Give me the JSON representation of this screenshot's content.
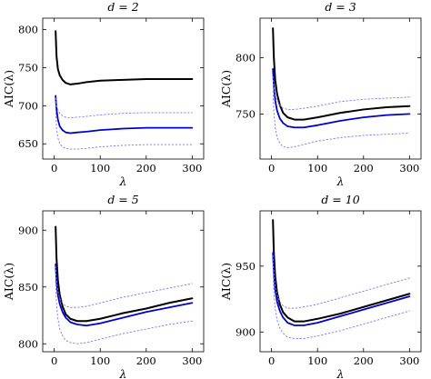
{
  "chart_data": [
    {
      "type": "line",
      "title": "d = 2",
      "xlabel": "λ",
      "ylabel": "AIC(λ)",
      "xlim": [
        -25,
        325
      ],
      "ylim": [
        630,
        815
      ],
      "xticks": [
        0,
        100,
        200,
        300
      ],
      "yticks": [
        650,
        700,
        750,
        800
      ],
      "grid": false,
      "colors": {
        "aic": "#000000",
        "model": "#0000cc",
        "band": "#7777ee"
      },
      "series": [
        {
          "role": "aic",
          "x": [
            3,
            5,
            8,
            12,
            18,
            25,
            35,
            50,
            70,
            100,
            150,
            200,
            250,
            300
          ],
          "y": [
            798,
            765,
            748,
            740,
            734,
            730,
            728,
            729,
            731,
            733,
            734,
            735,
            735,
            735
          ]
        },
        {
          "role": "model",
          "x": [
            3,
            5,
            8,
            12,
            18,
            25,
            35,
            50,
            70,
            100,
            150,
            200,
            250,
            300
          ],
          "y": [
            713,
            695,
            682,
            673,
            668,
            665,
            664,
            665,
            666,
            668,
            670,
            671,
            671,
            671
          ]
        },
        {
          "role": "band",
          "x": [
            3,
            5,
            8,
            12,
            18,
            25,
            35,
            50,
            70,
            100,
            150,
            200,
            250,
            300
          ],
          "y": [
            710,
            700,
            695,
            690,
            687,
            685,
            684,
            685,
            686,
            688,
            690,
            691,
            691,
            691
          ]
        },
        {
          "role": "band",
          "x": [
            3,
            5,
            8,
            12,
            18,
            25,
            35,
            50,
            70,
            100,
            150,
            200,
            250,
            300
          ],
          "y": [
            700,
            670,
            658,
            650,
            646,
            644,
            643,
            643,
            644,
            646,
            648,
            649,
            649,
            649
          ]
        }
      ]
    },
    {
      "type": "line",
      "title": "d = 3",
      "xlabel": "λ",
      "ylabel": "AIC(λ)",
      "xlim": [
        -25,
        325
      ],
      "ylim": [
        710,
        835
      ],
      "xticks": [
        0,
        100,
        200,
        300
      ],
      "yticks": [
        750,
        800
      ],
      "grid": false,
      "colors": {
        "aic": "#000000",
        "model": "#0000cc",
        "band": "#7777ee"
      },
      "series": [
        {
          "role": "aic",
          "x": [
            3,
            5,
            8,
            12,
            18,
            25,
            35,
            50,
            70,
            100,
            150,
            200,
            250,
            300
          ],
          "y": [
            826,
            800,
            780,
            768,
            758,
            751,
            747,
            745,
            745,
            747,
            751,
            754,
            756,
            757
          ]
        },
        {
          "role": "model",
          "x": [
            3,
            5,
            8,
            12,
            18,
            25,
            35,
            50,
            70,
            100,
            150,
            200,
            250,
            300
          ],
          "y": [
            790,
            775,
            762,
            753,
            746,
            742,
            739,
            738,
            738,
            740,
            744,
            747,
            749,
            750
          ]
        },
        {
          "role": "band",
          "x": [
            3,
            5,
            8,
            12,
            18,
            25,
            35,
            50,
            70,
            100,
            150,
            200,
            250,
            300
          ],
          "y": [
            783,
            775,
            767,
            762,
            758,
            755,
            754,
            754,
            755,
            757,
            761,
            763,
            764,
            765
          ]
        },
        {
          "role": "band",
          "x": [
            3,
            5,
            8,
            12,
            18,
            25,
            35,
            50,
            70,
            100,
            150,
            200,
            250,
            300
          ],
          "y": [
            770,
            752,
            738,
            729,
            724,
            721,
            720,
            721,
            723,
            726,
            729,
            731,
            732,
            733
          ]
        }
      ]
    },
    {
      "type": "line",
      "title": "d = 5",
      "xlabel": "λ",
      "ylabel": "AIC(λ)",
      "xlim": [
        -25,
        325
      ],
      "ylim": [
        793,
        917
      ],
      "xticks": [
        0,
        100,
        200,
        300
      ],
      "yticks": [
        800,
        850,
        900
      ],
      "grid": false,
      "colors": {
        "aic": "#000000",
        "model": "#0000cc",
        "band": "#7777ee"
      },
      "series": [
        {
          "role": "aic",
          "x": [
            3,
            5,
            8,
            12,
            18,
            25,
            35,
            50,
            70,
            100,
            150,
            200,
            250,
            300
          ],
          "y": [
            903,
            875,
            856,
            843,
            833,
            826,
            822,
            820,
            820,
            822,
            827,
            831,
            836,
            840
          ]
        },
        {
          "role": "model",
          "x": [
            3,
            5,
            8,
            12,
            18,
            25,
            35,
            50,
            70,
            100,
            150,
            200,
            250,
            300
          ],
          "y": [
            870,
            855,
            843,
            835,
            828,
            823,
            819,
            817,
            816,
            818,
            823,
            828,
            832,
            836
          ]
        },
        {
          "role": "band",
          "x": [
            3,
            5,
            8,
            12,
            18,
            25,
            35,
            50,
            70,
            100,
            150,
            200,
            250,
            300
          ],
          "y": [
            868,
            856,
            846,
            840,
            836,
            833,
            832,
            832,
            833,
            836,
            841,
            845,
            849,
            853
          ]
        },
        {
          "role": "band",
          "x": [
            3,
            5,
            8,
            12,
            18,
            25,
            35,
            50,
            70,
            100,
            150,
            200,
            250,
            300
          ],
          "y": [
            855,
            835,
            822,
            813,
            807,
            803,
            801,
            800,
            801,
            804,
            809,
            813,
            817,
            820
          ]
        }
      ]
    },
    {
      "type": "line",
      "title": "d = 10",
      "xlabel": "λ",
      "ylabel": "AIC(λ)",
      "xlim": [
        -25,
        325
      ],
      "ylim": [
        885,
        992
      ],
      "xticks": [
        0,
        100,
        200,
        300
      ],
      "yticks": [
        900,
        950
      ],
      "grid": false,
      "colors": {
        "aic": "#000000",
        "model": "#0000cc",
        "band": "#7777ee"
      },
      "series": [
        {
          "role": "aic",
          "x": [
            3,
            5,
            8,
            12,
            18,
            25,
            35,
            50,
            70,
            100,
            150,
            200,
            250,
            300
          ],
          "y": [
            985,
            960,
            942,
            930,
            921,
            915,
            911,
            908,
            908,
            910,
            914,
            919,
            924,
            929
          ]
        },
        {
          "role": "model",
          "x": [
            3,
            5,
            8,
            12,
            18,
            25,
            35,
            50,
            70,
            100,
            150,
            200,
            250,
            300
          ],
          "y": [
            960,
            945,
            932,
            923,
            916,
            911,
            907,
            905,
            905,
            907,
            912,
            917,
            922,
            927
          ]
        },
        {
          "role": "band",
          "x": [
            3,
            5,
            8,
            12,
            18,
            25,
            35,
            50,
            70,
            100,
            150,
            200,
            250,
            300
          ],
          "y": [
            958,
            945,
            935,
            928,
            923,
            920,
            918,
            918,
            919,
            921,
            926,
            931,
            936,
            941
          ]
        },
        {
          "role": "band",
          "x": [
            3,
            5,
            8,
            12,
            18,
            25,
            35,
            50,
            70,
            100,
            150,
            200,
            250,
            300
          ],
          "y": [
            950,
            930,
            918,
            909,
            903,
            899,
            896,
            895,
            895,
            897,
            901,
            906,
            911,
            916
          ]
        }
      ]
    }
  ]
}
